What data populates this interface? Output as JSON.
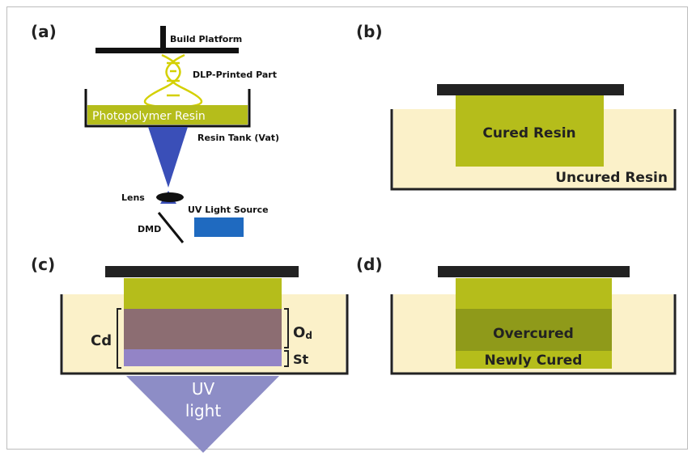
{
  "panels": {
    "a": {
      "label": "(a)",
      "build_platform": "Build Platform",
      "printed_part": "DLP-Printed Part",
      "resin": "Photopolymer Resin",
      "tank": "Resin Tank (Vat)",
      "lens": "Lens",
      "uv_source": "UV Light Source",
      "dmd": "DMD"
    },
    "b": {
      "label": "(b)",
      "cured": "Cured Resin",
      "uncured": "Uncured Resin"
    },
    "c": {
      "label": "(c)",
      "cd": "Cd",
      "od_main": "O",
      "od_sub": "d",
      "st": "St",
      "uv_line1": "UV",
      "uv_line2": "light"
    },
    "d": {
      "label": "(d)",
      "overcured": "Overcured",
      "newly_cured": "Newly Cured"
    }
  },
  "colors": {
    "cured": "#b5bd1b",
    "uncured": "#fbf1c9",
    "overcured_layer": "#8c6d72",
    "stack_layer": "#9384c6",
    "uv_beam": "#3a4fb8",
    "uv_cone": "#8d8dc6",
    "uv_source_box": "#1f6ac0",
    "dark_green": "#8f9a1a"
  }
}
